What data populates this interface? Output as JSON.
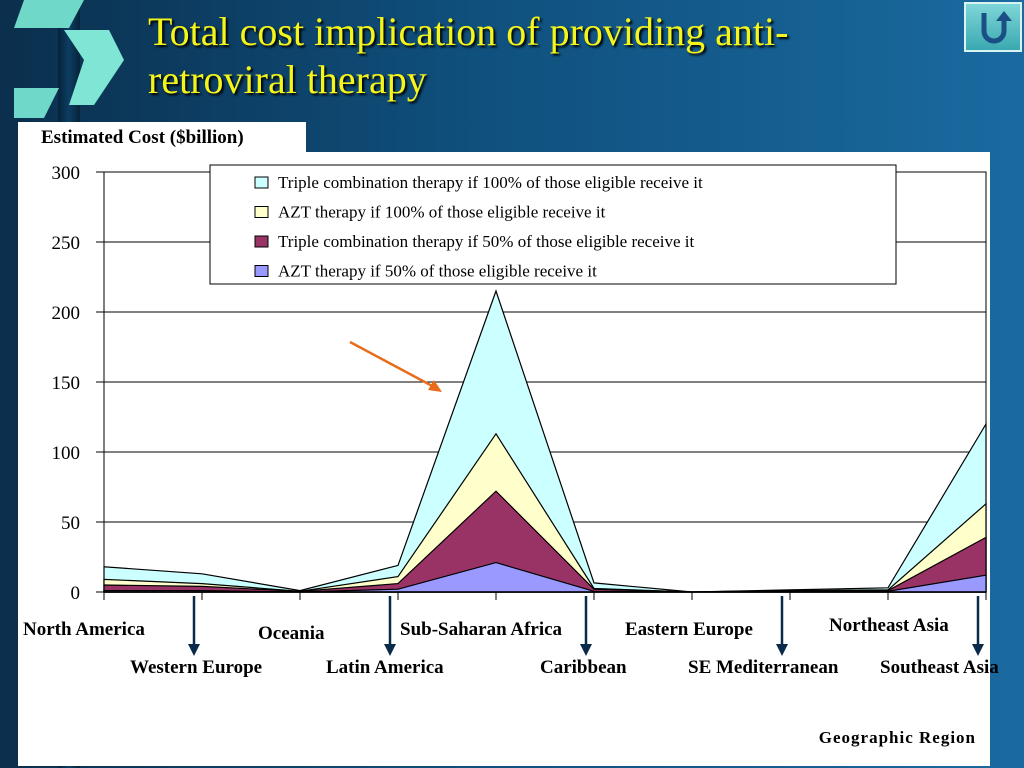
{
  "slide": {
    "title": "Total cost implication of providing anti-retroviral therapy",
    "ylabel": "Estimated Cost ($billion)",
    "xlabel": "Geographic Region",
    "home_icon": "return-arrow-icon"
  },
  "colors": {
    "accent_title": "#f5f51a",
    "arrow": "#e86c1a"
  },
  "chart_data": {
    "type": "area",
    "stacked": true,
    "ylim": [
      0,
      300
    ],
    "yticks": [
      "0",
      "50",
      "100",
      "150",
      "200",
      "250",
      "300"
    ],
    "grid": true,
    "legend_position": "top-right",
    "x_labels": [
      "North America",
      "Western Europe",
      "Oceania",
      "Latin America",
      "Sub-Saharan Africa",
      "Caribbean",
      "Eastern Europe",
      "SE Mediterranean",
      "Northeast Asia",
      "Southeast Asia"
    ],
    "series": [
      {
        "name": "AZT therapy if 50% of those eligible receive it",
        "color": "#9999ff",
        "values": [
          1,
          1,
          0,
          2,
          21,
          0.5,
          0,
          0.5,
          0.5,
          12
        ]
      },
      {
        "name": "Triple combination therapy if 50% of those eligible receive it",
        "color": "#993366",
        "values": [
          4,
          3,
          0.5,
          4,
          51,
          1.5,
          0,
          0.5,
          0.5,
          27
        ]
      },
      {
        "name": "AZT therapy if 100% of those eligible receive it",
        "color": "#ffffcc",
        "values": [
          4,
          2,
          0,
          5,
          41,
          0.5,
          0,
          0,
          0.5,
          24
        ]
      },
      {
        "name": "Triple combination therapy if 100% of those eligible receive it",
        "color": "#ccffff",
        "values": [
          9,
          7,
          0.5,
          8,
          102,
          4,
          0,
          0.5,
          1.5,
          57
        ]
      }
    ]
  }
}
